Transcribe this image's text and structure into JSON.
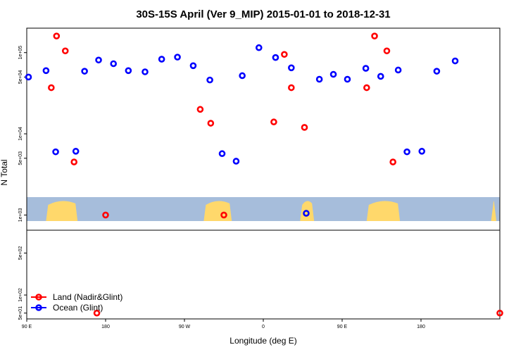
{
  "chart_data": {
    "type": "scatter",
    "title": "30S-15S April (Ver 9_MIP)   2015-01-01 to 2018-12-31",
    "xlabel": "Longitude (deg E)",
    "ylabel": "N Total",
    "x_scale": "longitude, 90E to 180 (wrapping 1.5 times around the globe)",
    "x_range": [
      90,
      630
    ],
    "x_ticks": [
      {
        "value": 90,
        "label": "90 E"
      },
      {
        "value": 180,
        "label": "180"
      },
      {
        "value": 270,
        "label": "90 W"
      },
      {
        "value": 360,
        "label": "0"
      },
      {
        "value": 450,
        "label": "90 E"
      },
      {
        "value": 540,
        "label": "180"
      }
    ],
    "y_scale": "log, broken axis",
    "y_upper_range": [
      650,
      200000
    ],
    "y_lower_range": [
      40,
      1200
    ],
    "y_ticks_upper": [
      {
        "value": 500,
        "label": "5e+02"
      },
      {
        "value": 1000,
        "label": "1e+03"
      },
      {
        "value": 5000,
        "label": "5e+03"
      },
      {
        "value": 10000,
        "label": "1e+04"
      },
      {
        "value": 50000,
        "label": "5e+04"
      },
      {
        "value": 100000,
        "label": "1e+05"
      }
    ],
    "y_ticks_lower": [
      {
        "value": 50,
        "label": "5e+01"
      },
      {
        "value": 100,
        "label": "1e+02"
      },
      {
        "value": 500,
        "label": "5e+02"
      }
    ],
    "background_map": "land/ocean strip at 30S-15S (land in yellow, ocean in blue)",
    "colors": {
      "land": "#ff0000",
      "ocean": "#0000ff",
      "map_ocean": "#a6bddb",
      "map_land": "#ffd86b"
    },
    "legend": {
      "position": "bottom-left",
      "entries": [
        {
          "label": "Land (Nadir&Glint)",
          "color": "#ff0000"
        },
        {
          "label": "Ocean (Glint)",
          "color": "#0000ff"
        }
      ]
    },
    "series": [
      {
        "name": "Land (Nadir&Glint)",
        "color": "#ff0000",
        "points": [
          {
            "x": 118,
            "y": 37000
          },
          {
            "x": 124,
            "y": 160000
          },
          {
            "x": 134,
            "y": 105000
          },
          {
            "x": 144,
            "y": 4500
          },
          {
            "x": 180,
            "y": 1000
          },
          {
            "x": 288,
            "y": 20000
          },
          {
            "x": 300,
            "y": 13500
          },
          {
            "x": 315,
            "y": 1000
          },
          {
            "x": 372,
            "y": 14000
          },
          {
            "x": 384,
            "y": 95000
          },
          {
            "x": 392,
            "y": 37000
          },
          {
            "x": 407,
            "y": 12000
          },
          {
            "x": 170,
            "y": 50
          },
          {
            "x": 478,
            "y": 37000
          },
          {
            "x": 487,
            "y": 160000
          },
          {
            "x": 501,
            "y": 105000
          },
          {
            "x": 508,
            "y": 4500
          },
          {
            "x": 630,
            "y": 50
          }
        ]
      },
      {
        "name": "Ocean (Glint)",
        "color": "#0000ff",
        "points": [
          {
            "x": 92,
            "y": 50000
          },
          {
            "x": 112,
            "y": 60000
          },
          {
            "x": 123,
            "y": 6000
          },
          {
            "x": 146,
            "y": 6100
          },
          {
            "x": 156,
            "y": 59000
          },
          {
            "x": 172,
            "y": 81000
          },
          {
            "x": 189,
            "y": 73000
          },
          {
            "x": 206,
            "y": 60000
          },
          {
            "x": 225,
            "y": 58000
          },
          {
            "x": 244,
            "y": 83000
          },
          {
            "x": 262,
            "y": 88000
          },
          {
            "x": 280,
            "y": 69000
          },
          {
            "x": 299,
            "y": 46000
          },
          {
            "x": 313,
            "y": 5700
          },
          {
            "x": 329,
            "y": 4600
          },
          {
            "x": 336,
            "y": 52000
          },
          {
            "x": 355,
            "y": 115000
          },
          {
            "x": 374,
            "y": 87000
          },
          {
            "x": 392,
            "y": 65000
          },
          {
            "x": 409,
            "y": 1050
          },
          {
            "x": 424,
            "y": 47000
          },
          {
            "x": 440,
            "y": 54000
          },
          {
            "x": 456,
            "y": 47000
          },
          {
            "x": 477,
            "y": 64000
          },
          {
            "x": 494,
            "y": 51000
          },
          {
            "x": 514,
            "y": 61000
          },
          {
            "x": 524,
            "y": 6000
          },
          {
            "x": 541,
            "y": 6100
          },
          {
            "x": 558,
            "y": 59000
          },
          {
            "x": 579,
            "y": 79000
          }
        ]
      }
    ]
  }
}
